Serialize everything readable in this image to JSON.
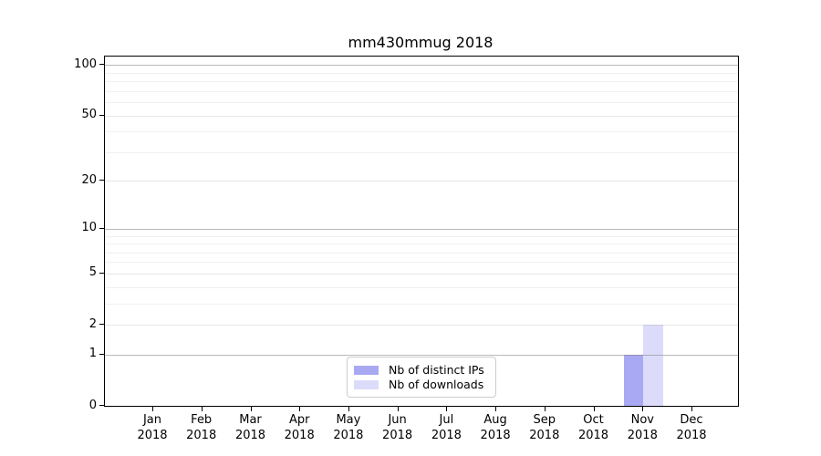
{
  "chart_data": {
    "type": "bar",
    "title": "mm430mmug 2018",
    "xlabel": "",
    "ylabel": "",
    "categories": [
      "Jan 2018",
      "Feb 2018",
      "Mar 2018",
      "Apr 2018",
      "May 2018",
      "Jun 2018",
      "Jul 2018",
      "Aug 2018",
      "Sep 2018",
      "Oct 2018",
      "Nov 2018",
      "Dec 2018"
    ],
    "x_tick_months": [
      "Jan",
      "Feb",
      "Mar",
      "Apr",
      "May",
      "Jun",
      "Jul",
      "Aug",
      "Sep",
      "Oct",
      "Nov",
      "Dec"
    ],
    "x_tick_year": "2018",
    "series": [
      {
        "name": "Nb of distinct IPs",
        "color": "#a9a9f3",
        "values": [
          0,
          0,
          0,
          0,
          0,
          0,
          0,
          0,
          0,
          0,
          1,
          0
        ]
      },
      {
        "name": "Nb of downloads",
        "color": "#dcdcfa",
        "values": [
          0,
          0,
          0,
          0,
          0,
          0,
          0,
          0,
          0,
          0,
          2,
          0
        ]
      }
    ],
    "y_scale": "log1p",
    "y_ticks": [
      0,
      1,
      2,
      5,
      10,
      20,
      50,
      100
    ],
    "y_grid_major": [
      1,
      10,
      100
    ],
    "y_grid_mid": [
      2,
      5,
      20,
      50
    ],
    "y_grid_minor": [
      3,
      4,
      6,
      7,
      8,
      9,
      30,
      40,
      60,
      70,
      80,
      90
    ],
    "ylim": [
      0,
      112
    ],
    "grid": "horizontal",
    "legend_position": "lower center"
  },
  "colors": {
    "background": "#ffffff",
    "spine": "#000000",
    "text": "#000000",
    "grid_major": "rgba(128,128,128,0.55)",
    "grid_mid": "rgba(128,128,128,0.20)",
    "grid_minor": "rgba(128,128,128,0.12)",
    "legend_border": "#cccccc",
    "legend_bg": "rgba(255,255,255,0.8)"
  }
}
